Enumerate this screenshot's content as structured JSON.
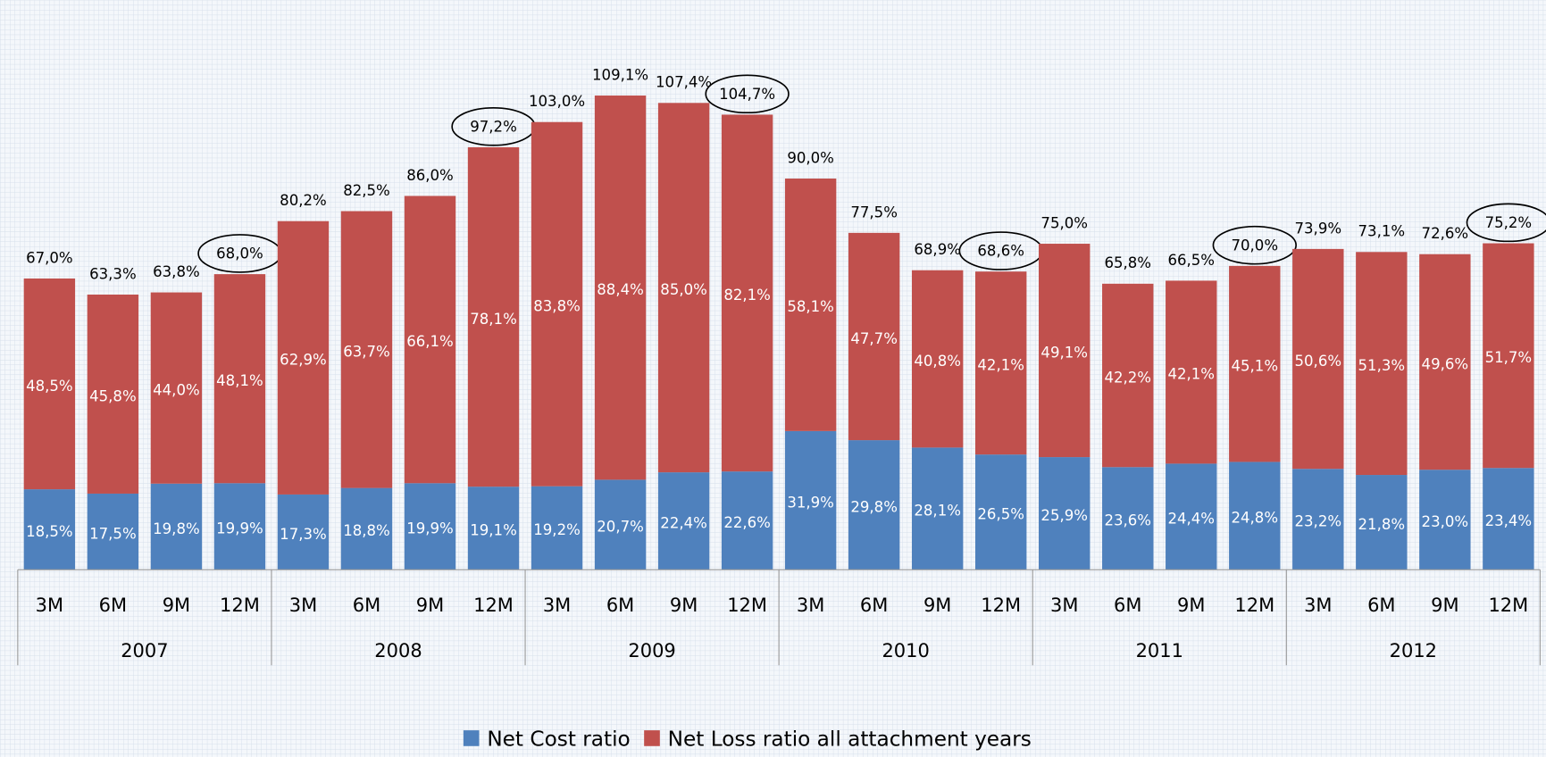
{
  "chart_data": {
    "type": "stacked_bar",
    "categories": [
      "3M",
      "6M",
      "9M",
      "12M",
      "3M",
      "6M",
      "9M",
      "12M",
      "3M",
      "6M",
      "9M",
      "12M",
      "3M",
      "6M",
      "9M",
      "12M",
      "3M",
      "6M",
      "9M",
      "12M",
      "3M",
      "6M",
      "9M",
      "12M"
    ],
    "groups": [
      "2007",
      "2008",
      "2009",
      "2010",
      "2011",
      "2012"
    ],
    "series": [
      {
        "name": "Net Cost ratio",
        "color": "#4f81bd",
        "values": [
          18.5,
          17.5,
          19.8,
          19.9,
          17.3,
          18.8,
          19.9,
          19.1,
          19.2,
          20.7,
          22.4,
          22.6,
          31.9,
          29.8,
          28.1,
          26.5,
          25.9,
          23.6,
          24.4,
          24.8,
          23.2,
          21.8,
          23.0,
          23.4
        ],
        "value_labels": [
          "18,5%",
          "17,5%",
          "19,8%",
          "19,9%",
          "17,3%",
          "18,8%",
          "19,9%",
          "19,1%",
          "19,2%",
          "20,7%",
          "22,4%",
          "22,6%",
          "31,9%",
          "29,8%",
          "28,1%",
          "26,5%",
          "25,9%",
          "23,6%",
          "24,4%",
          "24,8%",
          "23,2%",
          "21,8%",
          "23,0%",
          "23,4%"
        ]
      },
      {
        "name": "Net Loss ratio all attachment years",
        "color": "#c0504d",
        "values": [
          48.5,
          45.8,
          44.0,
          48.1,
          62.9,
          63.7,
          66.1,
          78.1,
          83.8,
          88.4,
          85.0,
          82.1,
          58.1,
          47.7,
          40.8,
          42.1,
          49.1,
          42.2,
          42.1,
          45.1,
          50.6,
          51.3,
          49.6,
          51.7
        ],
        "value_labels": [
          "48,5%",
          "45,8%",
          "44,0%",
          "48,1%",
          "62,9%",
          "63,7%",
          "66,1%",
          "78,1%",
          "83,8%",
          "88,4%",
          "85,0%",
          "82,1%",
          "58,1%",
          "47,7%",
          "40,8%",
          "42,1%",
          "49,1%",
          "42,2%",
          "42,1%",
          "45,1%",
          "50,6%",
          "51,3%",
          "49,6%",
          "51,7%"
        ]
      }
    ],
    "totals": [
      67.0,
      63.3,
      63.8,
      68.0,
      80.2,
      82.5,
      86.0,
      97.2,
      103.0,
      109.1,
      107.4,
      104.7,
      90.0,
      77.5,
      68.9,
      68.6,
      75.0,
      65.8,
      66.5,
      70.0,
      73.9,
      73.1,
      72.6,
      75.2
    ],
    "totals_labels": [
      "67,0%",
      "63,3%",
      "63,8%",
      "68,0%",
      "80,2%",
      "82,5%",
      "86,0%",
      "97,2%",
      "103,0%",
      "109,1%",
      "107,4%",
      "104,7%",
      "90,0%",
      "77,5%",
      "68,9%",
      "68,6%",
      "75,0%",
      "65,8%",
      "66,5%",
      "70,0%",
      "73,9%",
      "73,1%",
      "72,6%",
      "75,2%"
    ],
    "circled_totals": [
      3,
      7,
      11,
      15,
      19,
      23
    ],
    "legend": "bottom"
  }
}
